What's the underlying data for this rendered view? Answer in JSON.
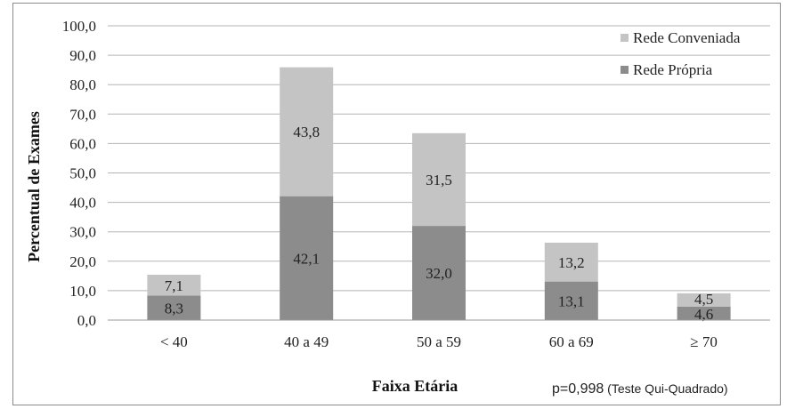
{
  "chart_data": {
    "type": "bar",
    "stacked": true,
    "categories": [
      "< 40",
      "40 a 49",
      "50 a 59",
      "60 a 69",
      "≥ 70"
    ],
    "series": [
      {
        "name": "Rede Própria",
        "values": [
          8.3,
          42.1,
          32.0,
          13.1,
          4.6
        ],
        "labels": [
          "8,3",
          "42,1",
          "32,0",
          "13,1",
          "4,6"
        ],
        "color": "#8c8c8c"
      },
      {
        "name": "Rede Conveniada",
        "values": [
          7.1,
          43.8,
          31.5,
          13.2,
          4.5
        ],
        "labels": [
          "7,1",
          "43,8",
          "31,5",
          "13,2",
          "4,5"
        ],
        "color": "#c4c4c4"
      }
    ],
    "xlabel": "Faixa Etária",
    "ylabel": "Percentual de Exames",
    "ylim": [
      0,
      100
    ],
    "yticks": [
      "0,0",
      "10,0",
      "20,0",
      "30,0",
      "40,0",
      "50,0",
      "60,0",
      "70,0",
      "80,0",
      "90,0",
      "100,0"
    ],
    "grid": true,
    "legend": "top-right",
    "legend_order": [
      "Rede Conveniada",
      "Rede Própria"
    ],
    "annotation_p": "p=0,998",
    "annotation_test": " (Teste Qui-Quadrado)"
  }
}
